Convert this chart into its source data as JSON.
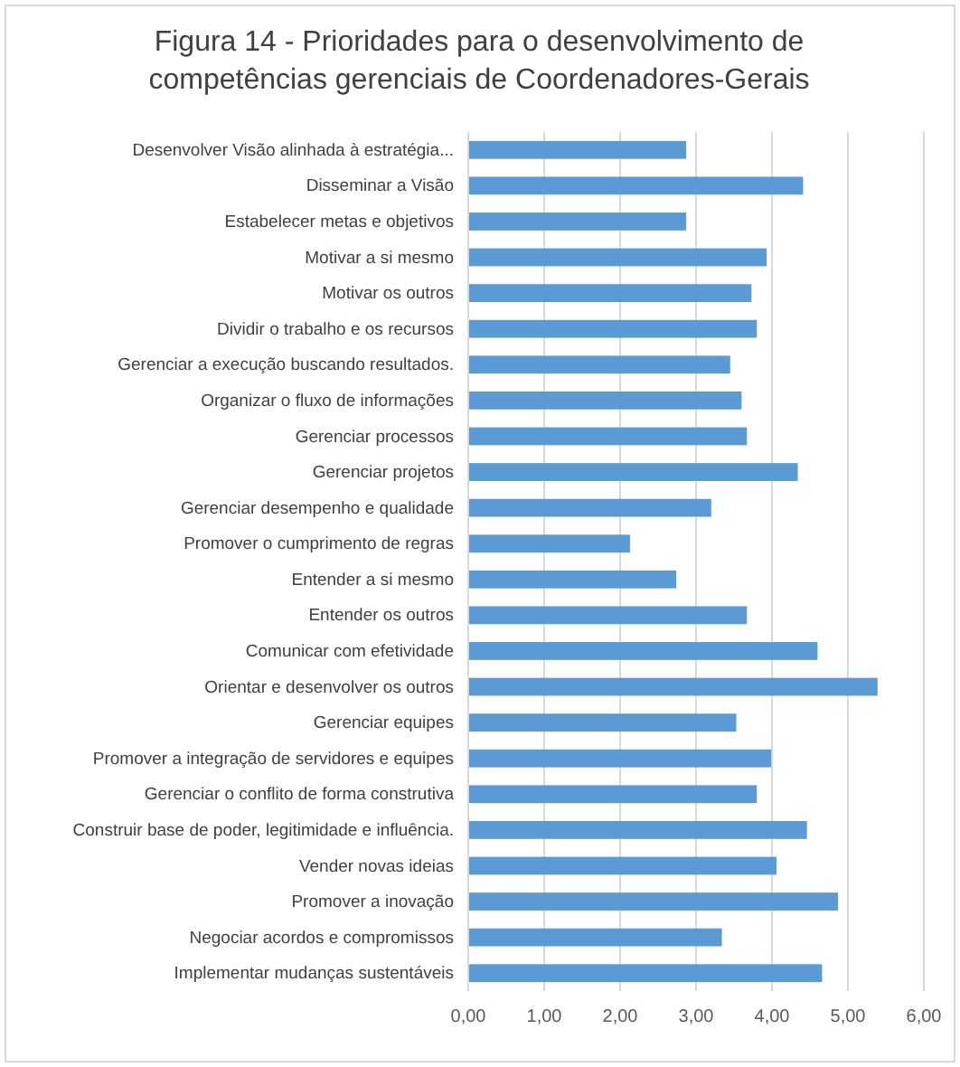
{
  "chart_data": {
    "type": "bar",
    "orientation": "horizontal",
    "title": "Figura 14 - Prioridades para o desenvolvimento de competências gerenciais de Coordenadores-Gerais",
    "categories": [
      "Desenvolver Visão alinhada à estratégia...",
      "Disseminar a Visão",
      "Estabelecer metas e objetivos",
      "Motivar a si mesmo",
      "Motivar os outros",
      "Dividir o trabalho e os recursos",
      "Gerenciar a execução buscando resultados.",
      "Organizar o fluxo de informações",
      "Gerenciar processos",
      "Gerenciar projetos",
      "Gerenciar desempenho e qualidade",
      "Promover o cumprimento de regras",
      "Entender a si mesmo",
      "Entender os outros",
      "Comunicar com efetividade",
      "Orientar e desenvolver os outros",
      "Gerenciar equipes",
      "Promover a integração de servidores e equipes",
      "Gerenciar o conflito de forma construtiva",
      "Construir base de poder, legitimidade e influência.",
      "Vender novas ideias",
      "Promover a inovação",
      "Negociar acordos e compromissos",
      "Implementar mudanças sustentáveis"
    ],
    "values": [
      2.87,
      4.41,
      2.87,
      3.93,
      3.73,
      3.8,
      3.45,
      3.6,
      3.67,
      4.34,
      3.2,
      2.13,
      2.74,
      3.67,
      4.6,
      5.39,
      3.53,
      3.99,
      3.8,
      4.46,
      4.06,
      4.87,
      3.34,
      4.66
    ],
    "color": "#5b9bd5",
    "xlim": [
      0,
      6
    ],
    "xticks": [
      {
        "value": 0,
        "label": "0,00"
      },
      {
        "value": 1,
        "label": "1,00"
      },
      {
        "value": 2,
        "label": "2,00"
      },
      {
        "value": 3,
        "label": "3,00"
      },
      {
        "value": 4,
        "label": "4,00"
      },
      {
        "value": 5,
        "label": "5,00"
      },
      {
        "value": 6,
        "label": "6,00"
      }
    ],
    "grid": "x"
  }
}
